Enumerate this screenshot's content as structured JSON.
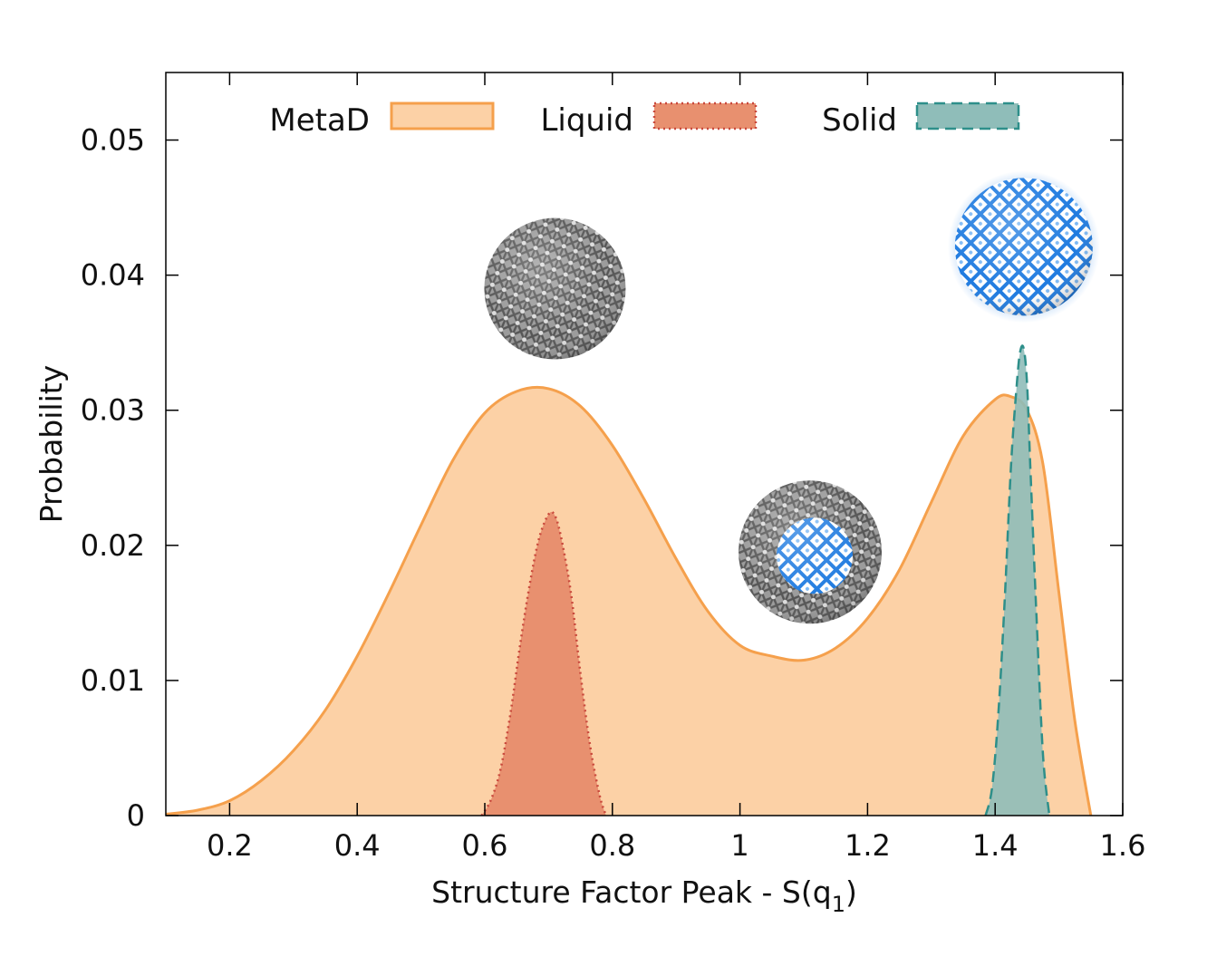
{
  "chart_data": {
    "type": "area",
    "title": "",
    "xlabel": "Structure Factor Peak - S(q",
    "xlabel_subscript": "1",
    "xlabel_suffix": ")",
    "ylabel": "Probability",
    "xlim": [
      0.1,
      1.6
    ],
    "ylim": [
      0,
      0.055
    ],
    "xticks": [
      0.2,
      0.4,
      0.6,
      0.8,
      1.0,
      1.2,
      1.4,
      1.6
    ],
    "xtick_labels": [
      "0.2",
      "0.4",
      "0.6",
      "0.8",
      "1",
      "1.2",
      "1.4",
      "1.6"
    ],
    "yticks": [
      0,
      0.01,
      0.02,
      0.03,
      0.04,
      0.05
    ],
    "ytick_labels": [
      "0",
      "0.01",
      "0.02",
      "0.03",
      "0.04",
      "0.05"
    ],
    "grid": false,
    "legend_position": "top",
    "series": [
      {
        "name": "MetaD",
        "fill": "#fcd1a6",
        "stroke": "#f5a04c",
        "dash": "",
        "x": [
          0.1,
          0.15,
          0.2,
          0.25,
          0.3,
          0.35,
          0.4,
          0.45,
          0.5,
          0.55,
          0.6,
          0.65,
          0.7,
          0.75,
          0.8,
          0.85,
          0.9,
          0.95,
          1.0,
          1.05,
          1.1,
          1.15,
          1.2,
          1.25,
          1.3,
          1.35,
          1.4,
          1.425,
          1.45,
          1.475,
          1.5,
          1.525,
          1.55
        ],
        "values": [
          0.0001,
          0.0004,
          0.0011,
          0.0026,
          0.0048,
          0.0078,
          0.0118,
          0.0165,
          0.0215,
          0.0263,
          0.0298,
          0.0314,
          0.0316,
          0.0303,
          0.0274,
          0.0234,
          0.019,
          0.0151,
          0.0126,
          0.0118,
          0.0115,
          0.0124,
          0.0146,
          0.0182,
          0.0232,
          0.0281,
          0.0308,
          0.031,
          0.03,
          0.026,
          0.0165,
          0.007,
          0.0
        ]
      },
      {
        "name": "Liquid",
        "fill": "#e8906f",
        "stroke": "#c9493c",
        "dash": "2,4",
        "x": [
          0.595,
          0.61,
          0.625,
          0.64,
          0.655,
          0.67,
          0.685,
          0.7,
          0.71,
          0.72,
          0.735,
          0.75,
          0.765,
          0.78,
          0.79
        ],
        "values": [
          0.0,
          0.0012,
          0.0035,
          0.0075,
          0.0125,
          0.017,
          0.0205,
          0.0223,
          0.0222,
          0.0205,
          0.0165,
          0.0105,
          0.0052,
          0.0015,
          0.0
        ]
      },
      {
        "name": "Solid",
        "fill": "#8fbdb9",
        "stroke": "#2e8f8a",
        "dash": "12,7",
        "x": [
          1.385,
          1.395,
          1.405,
          1.415,
          1.425,
          1.435,
          1.44,
          1.445,
          1.45,
          1.455,
          1.465,
          1.475,
          1.485
        ],
        "values": [
          0.0,
          0.002,
          0.0075,
          0.016,
          0.026,
          0.0325,
          0.0345,
          0.0345,
          0.032,
          0.026,
          0.0145,
          0.0045,
          0.0
        ]
      }
    ],
    "insets": [
      {
        "name": "liquid-cluster-image",
        "x": 0.71,
        "y": 0.039,
        "style": "gray"
      },
      {
        "name": "mixed-cluster-image",
        "x": 1.11,
        "y": 0.0195,
        "style": "mixed"
      },
      {
        "name": "solid-cluster-image",
        "x": 1.445,
        "y": 0.0421,
        "style": "blue"
      }
    ]
  }
}
